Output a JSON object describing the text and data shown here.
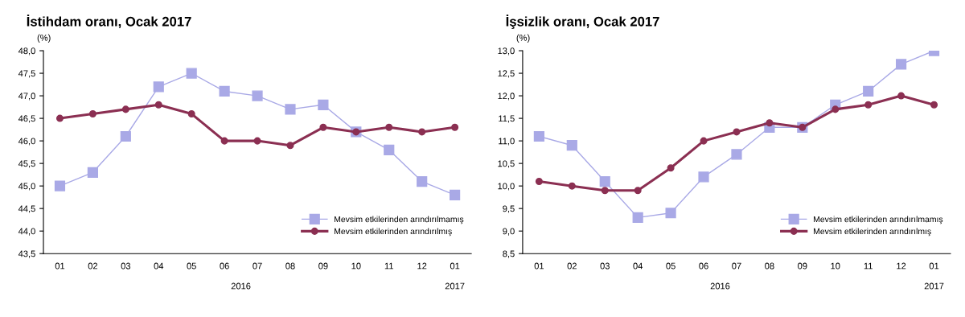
{
  "chart_data": [
    {
      "type": "line",
      "title": "İstihdam oranı, Ocak 2017",
      "ylabel": "(%)",
      "categories": [
        "01",
        "02",
        "03",
        "04",
        "05",
        "06",
        "07",
        "08",
        "09",
        "10",
        "11",
        "12",
        "01"
      ],
      "annotations": [
        "2016",
        "2017"
      ],
      "series": [
        {
          "name": "Mevsim etkilerinden arındırılmamış",
          "color": "#a9a9e6",
          "marker": "square",
          "values": [
            45.0,
            45.3,
            46.1,
            47.2,
            47.5,
            47.1,
            47.0,
            46.7,
            46.8,
            46.2,
            45.8,
            45.1,
            44.8
          ]
        },
        {
          "name": "Mevsim etkilerinden arındırılmış",
          "color": "#8b2f52",
          "marker": "circle",
          "values": [
            46.5,
            46.6,
            46.7,
            46.8,
            46.6,
            46.0,
            46.0,
            45.9,
            46.3,
            46.2,
            46.3,
            46.2,
            46.3
          ]
        }
      ],
      "ylim": [
        43.5,
        48.0
      ],
      "yticks": [
        {
          "value": 43.5,
          "label": "43,5"
        },
        {
          "value": 44.0,
          "label": "44,0"
        },
        {
          "value": 44.5,
          "label": "44,5"
        },
        {
          "value": 45.0,
          "label": "45,0"
        },
        {
          "value": 45.5,
          "label": "45,5"
        },
        {
          "value": 46.0,
          "label": "46,0"
        },
        {
          "value": 46.5,
          "label": "46,5"
        },
        {
          "value": 47.0,
          "label": "47,0"
        },
        {
          "value": 47.5,
          "label": "47,5"
        },
        {
          "value": 48.0,
          "label": "48,0"
        }
      ],
      "legend": "bottom right"
    },
    {
      "type": "line",
      "title": "İşsizlik oranı, Ocak 2017",
      "ylabel": "(%)",
      "categories": [
        "01",
        "02",
        "03",
        "04",
        "05",
        "06",
        "07",
        "08",
        "09",
        "10",
        "11",
        "12",
        "01"
      ],
      "annotations": [
        "2016",
        "2017"
      ],
      "series": [
        {
          "name": "Mevsim etkilerinden arındırılmamış",
          "color": "#a9a9e6",
          "marker": "square",
          "values": [
            11.1,
            10.9,
            10.1,
            9.3,
            9.4,
            10.2,
            10.7,
            11.3,
            11.3,
            11.8,
            12.1,
            12.7,
            13.0
          ]
        },
        {
          "name": "Mevsim etkilerinden arındırılmış",
          "color": "#8b2f52",
          "marker": "circle",
          "values": [
            10.1,
            10.0,
            9.9,
            9.9,
            10.4,
            11.0,
            11.2,
            11.4,
            11.3,
            11.7,
            11.8,
            12.0,
            11.8
          ]
        }
      ],
      "ylim": [
        8.5,
        13.0
      ],
      "yticks": [
        {
          "value": 8.5,
          "label": "8,5"
        },
        {
          "value": 9.0,
          "label": "9,0"
        },
        {
          "value": 9.5,
          "label": "9,5"
        },
        {
          "value": 10.0,
          "label": "10,0"
        },
        {
          "value": 10.5,
          "label": "10,5"
        },
        {
          "value": 11.0,
          "label": "11,0"
        },
        {
          "value": 11.5,
          "label": "11,5"
        },
        {
          "value": 12.0,
          "label": "12,0"
        },
        {
          "value": 12.5,
          "label": "12,5"
        },
        {
          "value": 13.0,
          "label": "13,0"
        }
      ],
      "legend": "bottom right"
    }
  ]
}
